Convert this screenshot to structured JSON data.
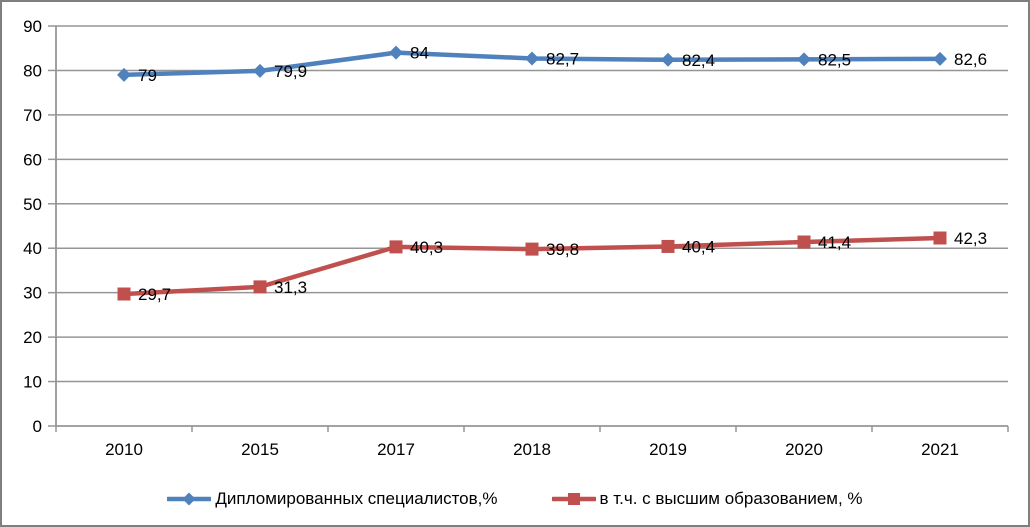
{
  "chart_data": {
    "type": "line",
    "categories": [
      "2010",
      "2015",
      "2017",
      "2018",
      "2019",
      "2020",
      "2021"
    ],
    "series": [
      {
        "name": "Дипломированных специалистов,%",
        "values": [
          79,
          79.9,
          84,
          82.7,
          82.4,
          82.5,
          82.6
        ],
        "labels": [
          "79",
          "79,9",
          "84",
          "82,7",
          "82,4",
          "82,5",
          "82,6"
        ],
        "color": "#4F81BD",
        "marker": "diamond"
      },
      {
        "name": "в т.ч. с высшим образованием, %",
        "values": [
          29.7,
          31.3,
          40.3,
          39.8,
          40.4,
          41.4,
          42.3
        ],
        "labels": [
          "29,7",
          "31,3",
          "40,3",
          "39,8",
          "40,4",
          "41,4",
          "42,3"
        ],
        "color": "#C0504D",
        "marker": "square"
      }
    ],
    "title": "",
    "xlabel": "",
    "ylabel": "",
    "ylim": [
      0,
      90
    ],
    "ytick_step": 10,
    "yticks": [
      "0",
      "10",
      "20",
      "30",
      "40",
      "50",
      "60",
      "70",
      "80",
      "90"
    ],
    "grid": true,
    "legend_position": "bottom",
    "colors": {
      "gridline": "#969696",
      "axis": "#969696",
      "text": "#000000",
      "frame_border": "#7f7f7f",
      "background": "#ffffff"
    }
  }
}
